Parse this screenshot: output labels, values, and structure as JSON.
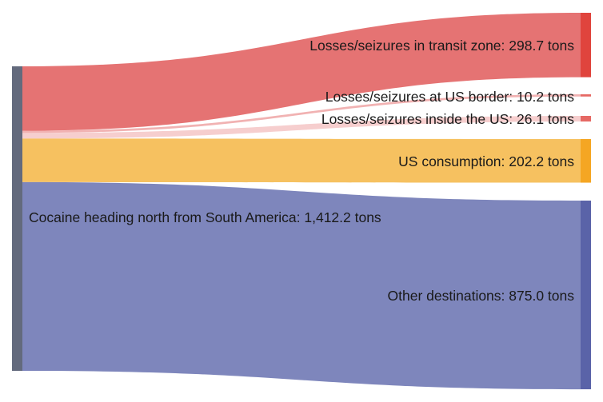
{
  "chart_data": {
    "type": "sankey",
    "title": "",
    "source": {
      "label": "Cocaine heading north from South America: 1,412.2 tons",
      "value": 1412.2,
      "color": "#636a7d"
    },
    "flows": [
      {
        "id": "transit",
        "label": "Losses/seizures in transit zone: 298.7 tons",
        "value": 298.7,
        "link_color": "#e57373",
        "link_opacity": 1.0,
        "node_color": "#e0443d"
      },
      {
        "id": "border",
        "label": "Losses/seizures at US border: 10.2 tons",
        "value": 10.2,
        "link_color": "#e57373",
        "link_opacity": 0.55,
        "node_color": "#e0443d"
      },
      {
        "id": "inside_us",
        "label": "Losses/seizures inside the US: 26.1 tons",
        "value": 26.1,
        "link_color": "#e57373",
        "link_opacity": 0.35,
        "node_color": "#e0443d"
      },
      {
        "id": "consumption",
        "label": "US consumption: 202.2 tons",
        "value": 202.2,
        "link_color": "#f6c160",
        "link_opacity": 1.0,
        "node_color": "#f5a623"
      },
      {
        "id": "other",
        "label": "Other destinations: 875.0 tons",
        "value": 875.0,
        "link_color": "#7e86bc",
        "link_opacity": 1.0,
        "node_color": "#5a63a8"
      }
    ]
  }
}
